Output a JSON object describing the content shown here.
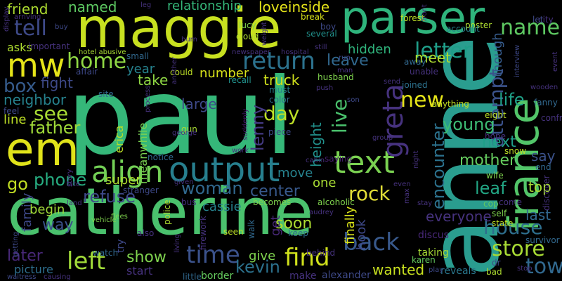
{
  "words": [
    {
      "text": "paul",
      "color": "#35b779"
    },
    {
      "text": "anne",
      "color": "#2a9d8f"
    },
    {
      "text": "catherine",
      "color": "#4ac16d"
    },
    {
      "text": "maggie",
      "color": "#c8e020"
    },
    {
      "text": "parser",
      "color": "#2fb47c"
    },
    {
      "text": "em",
      "color": "#e0e31a"
    },
    {
      "text": "france",
      "color": "#52c569"
    },
    {
      "text": "output",
      "color": "#277f8e"
    },
    {
      "text": "text",
      "color": "#7ad151"
    },
    {
      "text": "mw",
      "color": "#e5e419"
    },
    {
      "text": "align",
      "color": "#73d056"
    },
    {
      "text": "greta",
      "color": "#46327e"
    },
    {
      "text": "return",
      "color": "#2c728e"
    },
    {
      "text": "left",
      "color": "#a0da39"
    },
    {
      "text": "time",
      "color": "#3b528b"
    },
    {
      "text": "find",
      "color": "#d0e11c"
    },
    {
      "text": "back",
      "color": "#38598c"
    },
    {
      "text": "home",
      "color": "#8fd744"
    },
    {
      "text": "tell",
      "color": "#3e4a89"
    },
    {
      "text": "letter",
      "color": "#1f9e89"
    },
    {
      "text": "name",
      "color": "#5ec962"
    },
    {
      "text": "store",
      "color": "#a8db34"
    },
    {
      "text": "town",
      "color": "#31688e"
    },
    {
      "text": "house",
      "color": "#2e6f8e"
    },
    {
      "text": "rock",
      "color": "#e1dd37"
    },
    {
      "text": "see",
      "color": "#a8db34"
    },
    {
      "text": "box",
      "color": "#365c8d"
    },
    {
      "text": "day",
      "color": "#bddf26"
    },
    {
      "text": "new",
      "color": "#e5e419"
    },
    {
      "text": "live",
      "color": "#4ac16d"
    },
    {
      "text": "attempt",
      "color": "#3b528b"
    },
    {
      "text": "encounter",
      "color": "#2c728e"
    },
    {
      "text": "woman",
      "color": "#31688e"
    },
    {
      "text": "father",
      "color": "#a0da39"
    },
    {
      "text": "go",
      "color": "#c2df23"
    },
    {
      "text": "phone",
      "color": "#27ad81"
    },
    {
      "text": "refuse",
      "color": "#3e4989"
    },
    {
      "text": "lenny",
      "color": "#443a83"
    },
    {
      "text": "young",
      "color": "#3dbc74"
    },
    {
      "text": "life",
      "color": "#1fa188"
    },
    {
      "text": "mother",
      "color": "#65cb5e"
    },
    {
      "text": "next",
      "color": "#1f9e89"
    },
    {
      "text": "leaf",
      "color": "#22a785"
    },
    {
      "text": "kevin",
      "color": "#2c728e"
    },
    {
      "text": "center",
      "color": "#38598c"
    },
    {
      "text": "soon",
      "color": "#addc30"
    },
    {
      "text": "later",
      "color": "#482878"
    },
    {
      "text": "show",
      "color": "#7fd34e"
    },
    {
      "text": "wanted",
      "color": "#c8e020"
    },
    {
      "text": "way",
      "color": "#3b528b"
    },
    {
      "text": "friend",
      "color": "#addc30"
    },
    {
      "text": "named",
      "color": "#5ec962"
    },
    {
      "text": "relationship",
      "color": "#35b779"
    },
    {
      "text": "loveinside",
      "color": "#e5e419"
    },
    {
      "text": "hidden",
      "color": "#2fb47c"
    },
    {
      "text": "leave",
      "color": "#31688e"
    },
    {
      "text": "neighbor",
      "color": "#26828e"
    },
    {
      "text": "fight",
      "color": "#3e4a89"
    },
    {
      "text": "truck",
      "color": "#d0e11c"
    },
    {
      "text": "height",
      "color": "#21918c"
    },
    {
      "text": "meanwhile",
      "color": "#7ad151"
    },
    {
      "text": "erica",
      "color": "#bddf26"
    },
    {
      "text": "super",
      "color": "#addc30"
    },
    {
      "text": "cassie",
      "color": "#26828e"
    },
    {
      "text": "everyone",
      "color": "#46327e"
    },
    {
      "text": "last",
      "color": "#31688e"
    },
    {
      "text": "say",
      "color": "#3b528b"
    },
    {
      "text": "top",
      "color": "#a8db34"
    },
    {
      "text": "large",
      "color": "#3e4989"
    },
    {
      "text": "number",
      "color": "#d8e219"
    },
    {
      "text": "take",
      "color": "#8fd744"
    },
    {
      "text": "year",
      "color": "#26828e"
    },
    {
      "text": "line",
      "color": "#bddf26"
    },
    {
      "text": "begin",
      "color": "#a0da39"
    },
    {
      "text": "family",
      "color": "#3e4989"
    },
    {
      "text": "meet",
      "color": "#addc30"
    },
    {
      "text": "though",
      "color": "#365c8d"
    },
    {
      "text": "one",
      "color": "#a8db34"
    },
    {
      "text": "move",
      "color": "#26828e"
    },
    {
      "text": "finally",
      "color": "#d8e219"
    },
    {
      "text": "hook",
      "color": "#3e4989"
    },
    {
      "text": "get",
      "color": "#482878"
    },
    {
      "text": "give",
      "color": "#7fd34e"
    },
    {
      "text": "asks",
      "color": "#addc30"
    },
    {
      "text": "picture",
      "color": "#2e6f8e"
    },
    {
      "text": "anything",
      "color": "#c2df23"
    },
    {
      "text": "joined",
      "color": "#2c728e"
    },
    {
      "text": "must",
      "color": "#26828e"
    },
    {
      "text": "taking",
      "color": "#a8db34"
    },
    {
      "text": "karen",
      "color": "#65cb5e"
    },
    {
      "text": "alexander",
      "color": "#3e4a89"
    },
    {
      "text": "make",
      "color": "#46327e"
    },
    {
      "text": "reveals",
      "color": "#2a788e"
    },
    {
      "text": "bad",
      "color": "#addc30"
    },
    {
      "text": "alcoholic",
      "color": "#7fd34e"
    },
    {
      "text": "behind",
      "color": "#46327e"
    },
    {
      "text": "start",
      "color": "#46327e"
    },
    {
      "text": "little",
      "color": "#31688e"
    },
    {
      "text": "border",
      "color": "#65cb5e"
    },
    {
      "text": "watch",
      "color": "#31688e"
    },
    {
      "text": "try",
      "color": "#3e4989"
    },
    {
      "text": "also",
      "color": "#46327e"
    },
    {
      "text": "seen",
      "color": "#bddf26"
    },
    {
      "text": "walk",
      "color": "#31688e"
    },
    {
      "text": "keep",
      "color": "#2e6f8e"
    },
    {
      "text": "discus",
      "color": "#482878"
    },
    {
      "text": "piece",
      "color": "#3e4989"
    },
    {
      "text": "saying",
      "color": "#481f70"
    },
    {
      "text": "gun",
      "color": "#a8db34"
    },
    {
      "text": "stranger",
      "color": "#3e4989"
    },
    {
      "text": "police",
      "color": "#addc30"
    },
    {
      "text": "bus",
      "color": "#46327e"
    },
    {
      "text": "could",
      "color": "#bddf26"
    },
    {
      "text": "lucy",
      "color": "#7fd34e"
    },
    {
      "text": "cloud",
      "color": "#addc30"
    },
    {
      "text": "recall",
      "color": "#21918c"
    },
    {
      "text": "husband",
      "color": "#7fd34e"
    },
    {
      "text": "color",
      "color": "#2e6f8e"
    },
    {
      "text": "suddenly",
      "color": "#481f70"
    },
    {
      "text": "several",
      "color": "#21918c"
    },
    {
      "text": "boy",
      "color": "#3e4989"
    },
    {
      "text": "break",
      "color": "#d8e219"
    },
    {
      "text": "forest",
      "color": "#bddf26"
    },
    {
      "text": "poster",
      "color": "#addc30"
    },
    {
      "text": "account",
      "color": "#26828e"
    },
    {
      "text": "city",
      "color": "#46327e"
    },
    {
      "text": "let",
      "color": "#3e4989"
    },
    {
      "text": "away",
      "color": "#31688e"
    },
    {
      "text": "unable",
      "color": "#46327e"
    },
    {
      "text": "interview",
      "color": "#3e4989"
    },
    {
      "text": "eight",
      "color": "#bddf26"
    },
    {
      "text": "fanny",
      "color": "#31688e"
    },
    {
      "text": "confronts",
      "color": "#46327e"
    },
    {
      "text": "snow",
      "color": "#bddf26"
    },
    {
      "text": "wife",
      "color": "#7fd34e"
    },
    {
      "text": "come",
      "color": "#46327e"
    },
    {
      "text": "hope",
      "color": "#46327e"
    },
    {
      "text": "cop",
      "color": "#65cb5e"
    },
    {
      "text": "self",
      "color": "#7fd34e"
    },
    {
      "text": "state",
      "color": "#bddf26"
    },
    {
      "text": "survivor",
      "color": "#31688e"
    },
    {
      "text": "discover",
      "color": "#46327e"
    },
    {
      "text": "end",
      "color": "#31688e"
    },
    {
      "text": "dr",
      "color": "#3e4989"
    },
    {
      "text": "play",
      "color": "#3e4989"
    },
    {
      "text": "important",
      "color": "#46327e"
    },
    {
      "text": "hotel abusive",
      "color": "#a8db34"
    },
    {
      "text": "small",
      "color": "#31688e"
    },
    {
      "text": "affair",
      "color": "#3e4989"
    },
    {
      "text": "site",
      "color": "#31688e"
    },
    {
      "text": "notice",
      "color": "#31688e"
    },
    {
      "text": "feel",
      "color": "#3e4989"
    },
    {
      "text": "story",
      "color": "#46327e"
    },
    {
      "text": "getting",
      "color": "#3e4989"
    },
    {
      "text": "waitress",
      "color": "#3e4989"
    },
    {
      "text": "vehicle",
      "color": "#7fd34e"
    },
    {
      "text": "given",
      "color": "#46327e"
    },
    {
      "text": "land",
      "color": "#46327e"
    },
    {
      "text": "causing",
      "color": "#46327e"
    },
    {
      "text": "flees",
      "color": "#7fd34e"
    },
    {
      "text": "living",
      "color": "#46327e"
    },
    {
      "text": "firework",
      "color": "#46327e"
    },
    {
      "text": "becomes",
      "color": "#7fd34e"
    },
    {
      "text": "audrey",
      "color": "#46327e"
    },
    {
      "text": "max",
      "color": "#46327e"
    },
    {
      "text": "stay",
      "color": "#46327e"
    },
    {
      "text": "even",
      "color": "#46327e"
    },
    {
      "text": "cabin",
      "color": "#46327e"
    },
    {
      "text": "work",
      "color": "#46327e"
    },
    {
      "text": "group",
      "color": "#46327e"
    },
    {
      "text": "night",
      "color": "#46327e"
    },
    {
      "text": "son",
      "color": "#3e4989"
    },
    {
      "text": "man",
      "color": "#46327e"
    },
    {
      "text": "run",
      "color": "#3e4989"
    },
    {
      "text": "still",
      "color": "#46327e"
    },
    {
      "text": "send",
      "color": "#46327e"
    },
    {
      "text": "push",
      "color": "#46327e"
    },
    {
      "text": "event",
      "color": "#46327e"
    },
    {
      "text": "wooden",
      "color": "#46327e"
    },
    {
      "text": "arriving",
      "color": "#46327e"
    },
    {
      "text": "buy",
      "color": "#3e4989"
    },
    {
      "text": "leg",
      "color": "#46327e"
    },
    {
      "text": "burn",
      "color": "#46327e"
    },
    {
      "text": "weight",
      "color": "#46327e"
    },
    {
      "text": "newspaper",
      "color": "#46327e"
    },
    {
      "text": "hospital",
      "color": "#46327e"
    },
    {
      "text": "front",
      "color": "#46327e"
    },
    {
      "text": "george",
      "color": "#46327e"
    },
    {
      "text": "process",
      "color": "#46327e"
    },
    {
      "text": "another",
      "color": "#46327e"
    },
    {
      "text": "display",
      "color": "#46327e"
    },
    {
      "text": "stop",
      "color": "#46327e"
    },
    {
      "text": "late",
      "color": "#46327e"
    }
  ]
}
